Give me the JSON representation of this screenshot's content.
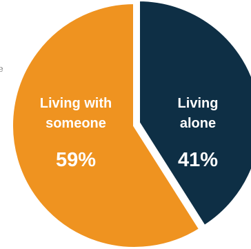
{
  "background_fragment": "e",
  "chart_data": {
    "type": "pie",
    "title": "",
    "slices": [
      {
        "name_lines": [
          "Living",
          "alone"
        ],
        "value": 41,
        "value_label": "41%",
        "color": "#0e2f45"
      },
      {
        "name_lines": [
          "Living with",
          "someone"
        ],
        "value": 59,
        "value_label": "59%",
        "color": "#ef9320"
      }
    ]
  }
}
